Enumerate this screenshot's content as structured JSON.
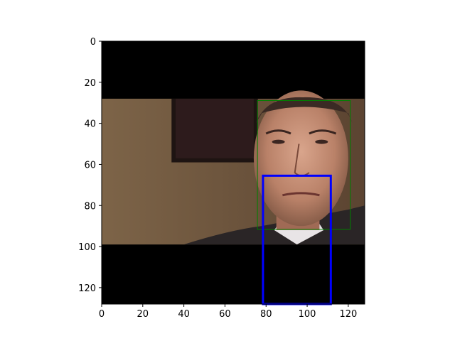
{
  "chart_data": {
    "type": "image",
    "title": "",
    "xlabel": "",
    "ylabel": "",
    "xlim": [
      0,
      128
    ],
    "ylim": [
      128,
      0
    ],
    "y_inverted": true,
    "grid": false,
    "legend": "none",
    "x_ticks": [
      0,
      20,
      40,
      60,
      80,
      100,
      120
    ],
    "y_ticks": [
      0,
      20,
      40,
      60,
      80,
      100,
      120
    ],
    "image": {
      "description": "letterboxed face photo",
      "content_rows": [
        28,
        99
      ],
      "background_color": "#000000",
      "photo_base_color": "#6a5238"
    },
    "boxes": [
      {
        "name": "",
        "color": "#008000",
        "linewidth": 1,
        "x0": 75.8,
        "y0": 28.9,
        "x1": 121,
        "y1": 91.6
      },
      {
        "name": "",
        "color": "#0000ff",
        "linewidth": 3,
        "x0": 78.5,
        "y0": 65.5,
        "x1": 111.5,
        "y1": 128
      }
    ]
  }
}
